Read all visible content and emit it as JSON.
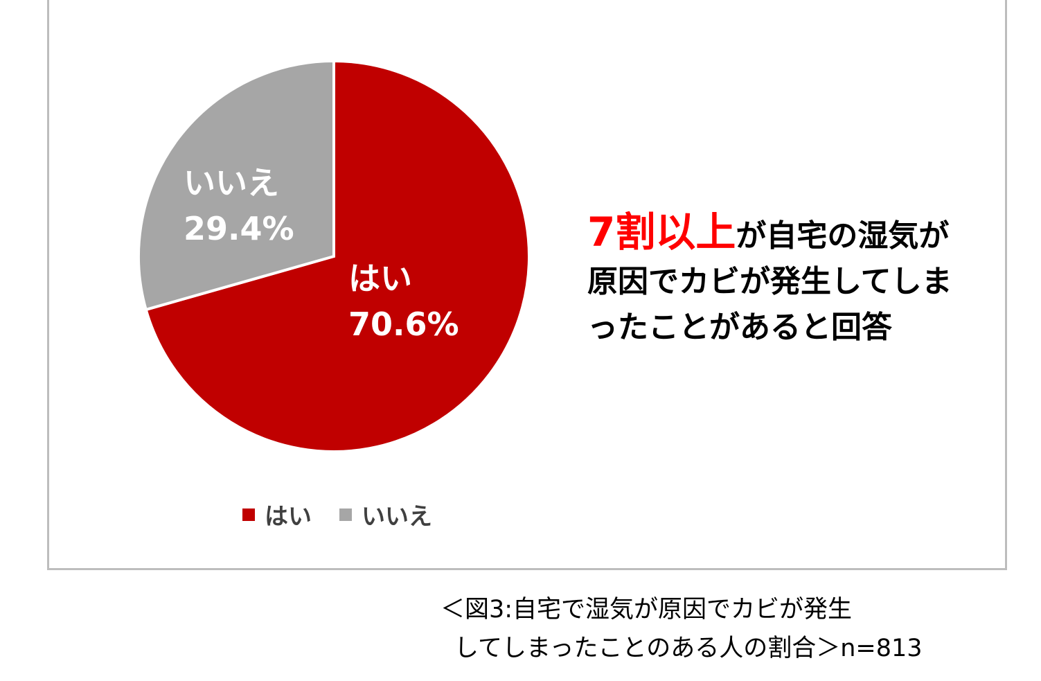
{
  "chart_data": {
    "type": "pie",
    "categories": [
      "はい",
      "いいえ"
    ],
    "values": [
      70.6,
      29.4
    ],
    "colors": [
      "#c00000",
      "#a6a6a6"
    ],
    "slice_labels": [
      {
        "name": "はい",
        "value": "70.6%"
      },
      {
        "name": "いいえ",
        "value": "29.4%"
      }
    ],
    "legend": [
      "はい",
      "いいえ"
    ],
    "legend_position": "bottom-left"
  },
  "headline": {
    "emphasis": "7割以上",
    "rest": "が自宅の湿気が原因でカビが発生してしまったことがあると回答"
  },
  "caption": {
    "line1": "＜図3:自宅で湿気が原因でカビが発生",
    "line2": "してしまったことのある人の割合＞n=813"
  }
}
